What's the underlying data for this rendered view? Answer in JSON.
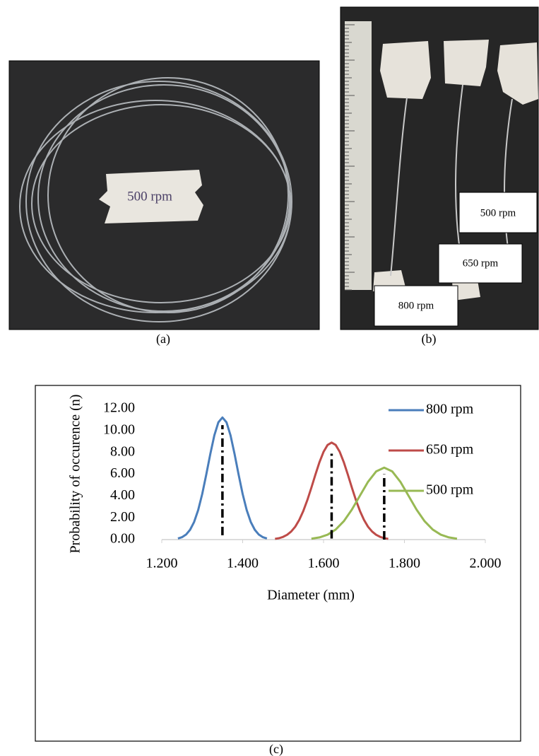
{
  "panels": {
    "a": {
      "label": "(a)",
      "tag_text": "500 rpm"
    },
    "b": {
      "label": "(b)",
      "tags": [
        "500 rpm",
        "650 rpm",
        "800 rpm"
      ]
    },
    "c": {
      "label": "(c)"
    }
  },
  "chart_data": {
    "type": "line",
    "xlabel": "Diameter  (mm)",
    "ylabel": "Probability of occurence (n)",
    "xlim": [
      1.2,
      2.0
    ],
    "ylim": [
      0,
      12
    ],
    "xticks": [
      {
        "value": 1.2,
        "label": "1.200"
      },
      {
        "value": 1.4,
        "label": "1.400"
      },
      {
        "value": 1.6,
        "label": "1.600"
      },
      {
        "value": 1.8,
        "label": "1.800"
      },
      {
        "value": 2.0,
        "label": "2.000"
      }
    ],
    "yticks": [
      {
        "value": 0,
        "label": "0.00"
      },
      {
        "value": 2,
        "label": "2.00"
      },
      {
        "value": 4,
        "label": "4.00"
      },
      {
        "value": 6,
        "label": "6.00"
      },
      {
        "value": 8,
        "label": "8.00"
      },
      {
        "value": 10,
        "label": "10.00"
      },
      {
        "value": 12,
        "label": "12.00"
      }
    ],
    "legend": "upper right",
    "series": [
      {
        "name": "800 rpm",
        "color": "#4a7ebb",
        "x": [
          1.24,
          1.25,
          1.26,
          1.27,
          1.28,
          1.29,
          1.3,
          1.31,
          1.32,
          1.33,
          1.34,
          1.35,
          1.36,
          1.37,
          1.38,
          1.39,
          1.4,
          1.41,
          1.42,
          1.43,
          1.44,
          1.45,
          1.46
        ],
        "values": [
          0.1,
          0.22,
          0.46,
          0.9,
          1.62,
          2.71,
          4.18,
          5.96,
          7.85,
          9.56,
          10.76,
          11.2,
          10.76,
          9.56,
          7.85,
          5.96,
          4.18,
          2.71,
          1.62,
          0.9,
          0.46,
          0.22,
          0.1
        ]
      },
      {
        "name": "650 rpm",
        "color": "#be4b48",
        "x": [
          1.48,
          1.49,
          1.5,
          1.51,
          1.52,
          1.53,
          1.54,
          1.55,
          1.56,
          1.57,
          1.58,
          1.59,
          1.6,
          1.61,
          1.62,
          1.63,
          1.64,
          1.65,
          1.66,
          1.67,
          1.68,
          1.69,
          1.7,
          1.71,
          1.72,
          1.73,
          1.74,
          1.75,
          1.76
        ],
        "values": [
          0.07,
          0.13,
          0.25,
          0.44,
          0.74,
          1.18,
          1.81,
          2.63,
          3.63,
          4.77,
          5.97,
          7.11,
          8.05,
          8.68,
          8.9,
          8.68,
          8.05,
          7.11,
          5.97,
          4.77,
          3.63,
          2.63,
          1.81,
          1.18,
          0.74,
          0.44,
          0.25,
          0.13,
          0.07
        ]
      },
      {
        "name": "500 rpm",
        "color": "#98b954",
        "x": [
          1.57,
          1.59,
          1.61,
          1.63,
          1.65,
          1.67,
          1.69,
          1.71,
          1.73,
          1.75,
          1.77,
          1.79,
          1.81,
          1.83,
          1.85,
          1.87,
          1.89,
          1.91,
          1.93
        ],
        "values": [
          0.08,
          0.2,
          0.45,
          0.92,
          1.68,
          2.75,
          4.03,
          5.3,
          6.25,
          6.6,
          6.25,
          5.3,
          4.03,
          2.75,
          1.68,
          0.92,
          0.45,
          0.2,
          0.08
        ]
      }
    ],
    "mean_lines": [
      {
        "x": 1.35,
        "ymin": 0.4,
        "ymax": 10.5
      },
      {
        "x": 1.62,
        "ymin": 0.1,
        "ymax": 8.2
      },
      {
        "x": 1.75,
        "ymin": 0,
        "ymax": 6.0
      }
    ]
  }
}
